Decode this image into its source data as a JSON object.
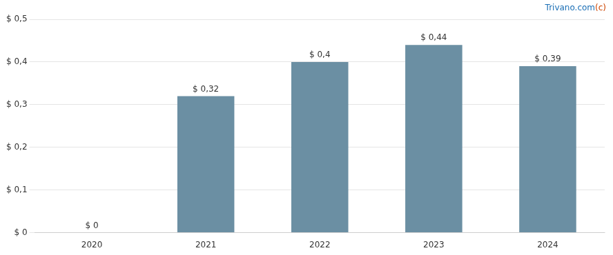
{
  "chart_data": {
    "type": "bar",
    "categories": [
      "2020",
      "2021",
      "2022",
      "2023",
      "2024"
    ],
    "values": [
      0.0,
      0.32,
      0.4,
      0.44,
      0.39
    ],
    "value_labels": [
      "$ 0",
      "$ 0,32",
      "$ 0,4",
      "$ 0,44",
      "$ 0,39"
    ],
    "data_labels": true,
    "color": "#6b8fa3",
    "ylim": [
      0,
      0.5
    ],
    "yticks": [
      {
        "value": 0.0,
        "label": "$ 0"
      },
      {
        "value": 0.1,
        "label": "$ 0,1"
      },
      {
        "value": 0.2,
        "label": "$ 0,2"
      },
      {
        "value": 0.3,
        "label": "$ 0,3"
      },
      {
        "value": 0.4,
        "label": "$ 0,4"
      },
      {
        "value": 0.5,
        "label": "$ 0,5"
      }
    ],
    "grid": true,
    "annotations": [
      {
        "text": " Trivano.com",
        "color": "#1a6eb5"
      },
      {
        "text": "(c)",
        "color": "#cc4400"
      }
    ]
  }
}
